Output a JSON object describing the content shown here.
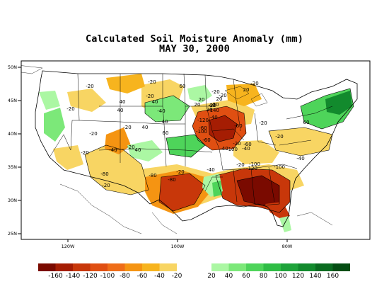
{
  "title_line1": "Calculated Soil Moisture Anomaly (mm)",
  "title_line2": "MAY 30, 2000",
  "axes": {
    "y_ticks": [
      "50N",
      "45N",
      "40N",
      "35N",
      "30N",
      "25N"
    ],
    "x_ticks": [
      "120W",
      "100W",
      "80W"
    ]
  },
  "colorbar": {
    "colors": [
      "#7a0a00",
      "#a51d03",
      "#c8370a",
      "#e04f12",
      "#ef6d18",
      "#f59412",
      "#f7b41e",
      "#f8d563",
      "#ffffff",
      "#ffffff",
      "#abf7a3",
      "#7ce879",
      "#4ed45a",
      "#2fbd45",
      "#1ea33a",
      "#128a2d",
      "#0a6b20",
      "#044d13"
    ],
    "labels": [
      "-160",
      "-140",
      "-120",
      "-100",
      "-80",
      "-60",
      "-40",
      "-20",
      "20",
      "40",
      "60",
      "80",
      "100",
      "120",
      "140",
      "160"
    ]
  },
  "contour_labels": [
    "-20",
    "-20",
    "-20",
    "-20",
    "-20",
    "-20",
    "-20",
    "-20",
    "-20",
    "-20",
    "-20",
    "-20",
    "-20",
    "-20",
    "-20",
    "-20",
    "-20",
    "-20",
    "-40",
    "-40",
    "-40",
    "-40",
    "-40",
    "-40",
    "-40",
    "40",
    "40",
    "40",
    "40",
    "40",
    "40",
    "40",
    "60",
    "60",
    "60",
    "20",
    "20",
    "20",
    "20",
    "20",
    "20",
    "-60",
    "-60",
    "-60",
    "-60",
    "-80",
    "-80",
    "-80",
    "-100",
    "-100",
    "-100",
    "-100",
    "-120",
    "-120",
    "-140"
  ],
  "colors": {
    "border": "#000000",
    "background": "#ffffff"
  }
}
